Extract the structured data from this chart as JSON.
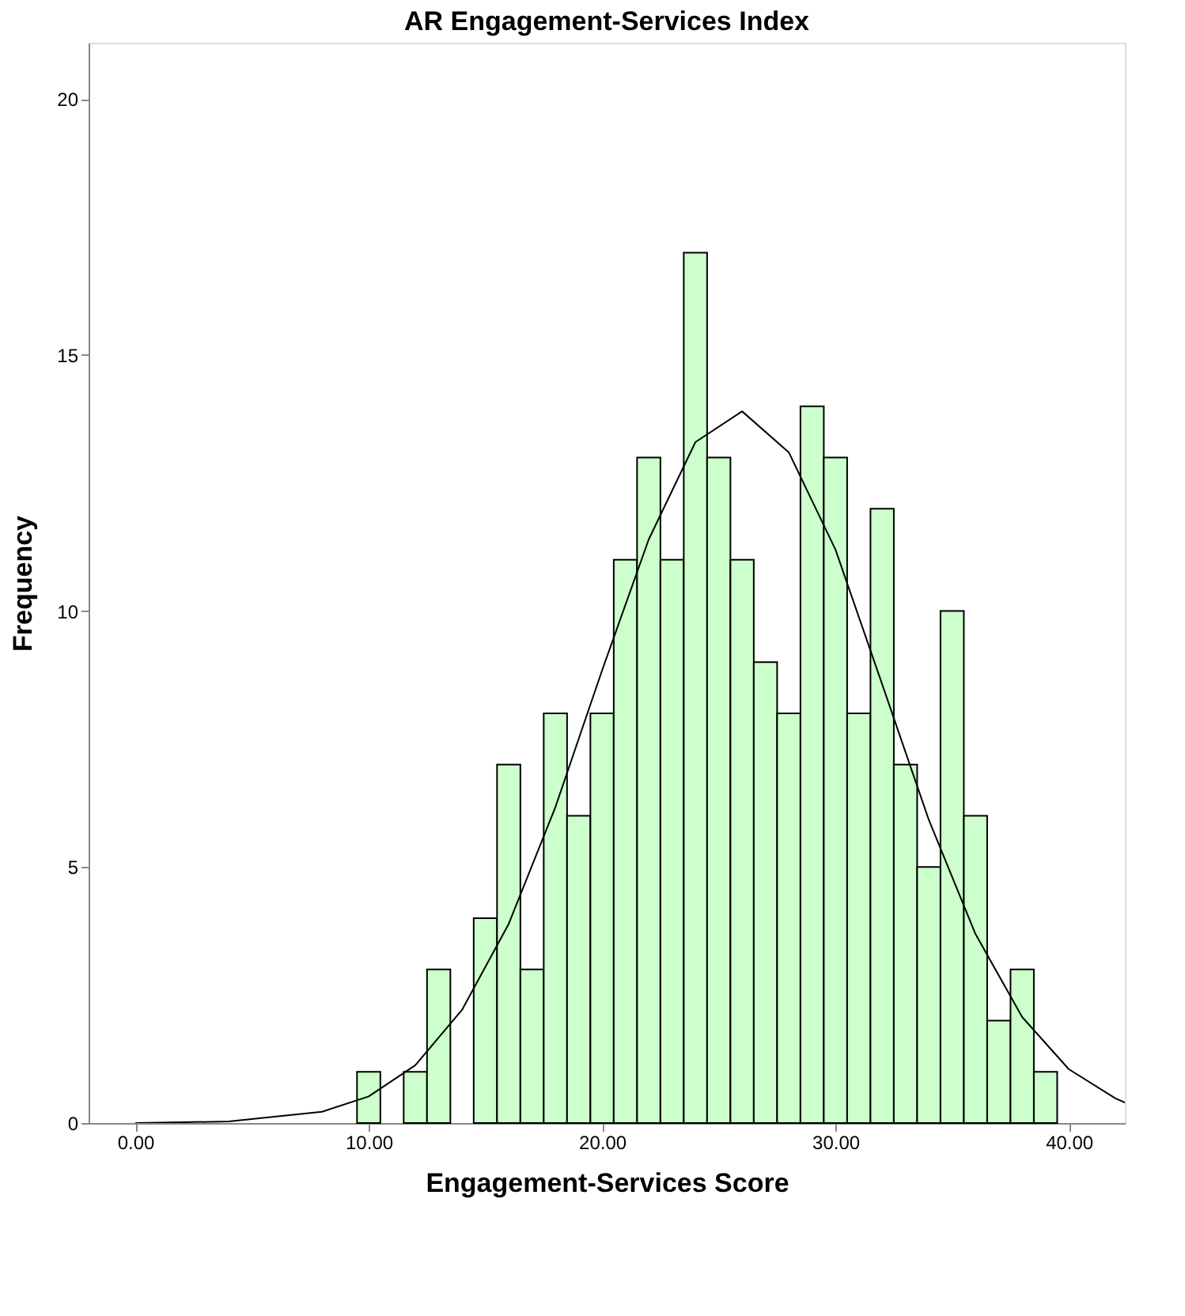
{
  "chart_data": {
    "type": "histogram",
    "title": "AR Engagement-Services Index",
    "xlabel": "Engagement-Services Score",
    "ylabel": "Frequency",
    "bins": [
      9.5,
      10.5,
      11.5,
      12.5,
      13.5,
      14.5,
      15.5,
      16.5,
      17.5,
      18.5,
      19.5,
      20.5,
      21.5,
      22.5,
      23.5,
      24.5,
      25.5,
      26.5,
      27.5,
      28.5,
      29.5,
      30.5,
      31.5,
      32.5,
      33.5,
      34.5,
      35.5,
      36.5,
      37.5,
      38.5,
      39.5
    ],
    "values": [
      1,
      0,
      1,
      3,
      0,
      4,
      7,
      3,
      8,
      6,
      8,
      11,
      13,
      11,
      17,
      13,
      11,
      9,
      8,
      14,
      13,
      8,
      12,
      7,
      5,
      10,
      6,
      2,
      3,
      1
    ],
    "color": "#ccffcc",
    "series": [
      {
        "type": "line",
        "color": "#000000",
        "x": [
          0,
          4,
          8,
          10,
          12,
          14,
          16,
          18,
          20,
          22,
          24,
          26,
          28,
          30,
          32,
          34,
          36,
          38,
          40,
          42,
          42.4
        ],
        "values": [
          0,
          0.03,
          0.22,
          0.52,
          1.13,
          2.21,
          3.89,
          6.17,
          8.84,
          11.4,
          13.3,
          13.9,
          13.1,
          11.2,
          8.57,
          5.92,
          3.69,
          2.07,
          1.05,
          0.48,
          0.4
        ]
      }
    ],
    "xlim": [
      -2,
      42.4
    ],
    "ylim": [
      0,
      21.1
    ],
    "xticks": [
      {
        "value": 0,
        "label": "0.00"
      },
      {
        "value": 10,
        "label": "10.00"
      },
      {
        "value": 20,
        "label": "20.00"
      },
      {
        "value": 30,
        "label": "30.00"
      },
      {
        "value": 40,
        "label": "40.00"
      }
    ],
    "yticks": [
      0,
      5,
      10,
      15,
      20
    ],
    "grid": false
  }
}
